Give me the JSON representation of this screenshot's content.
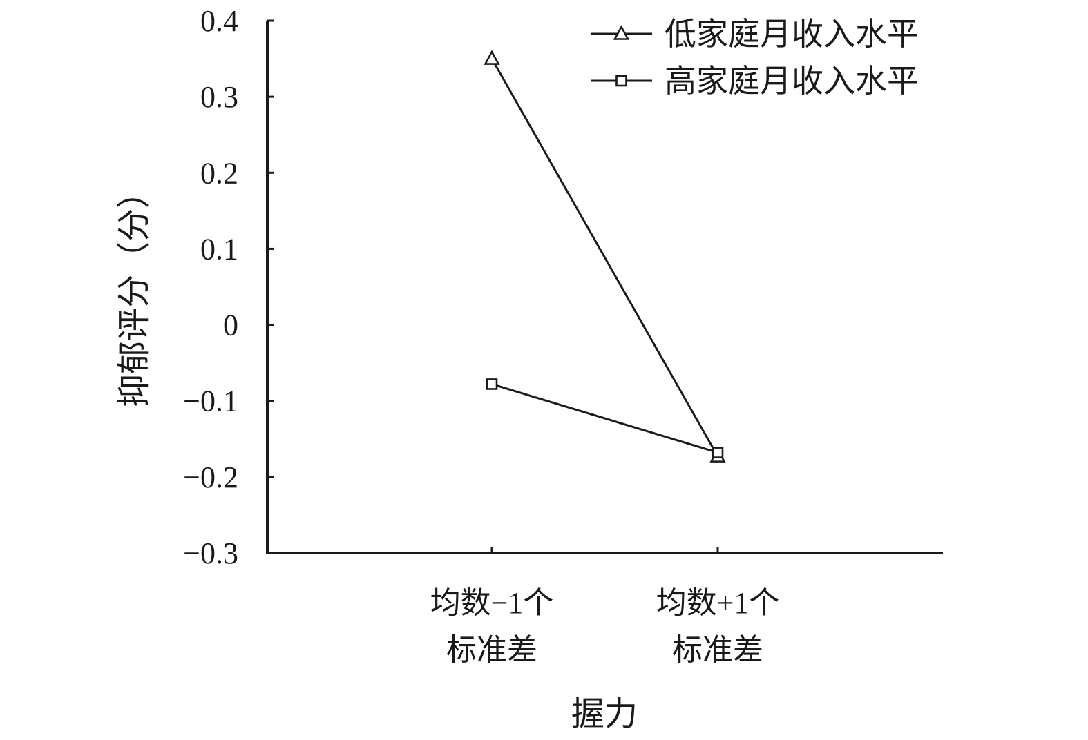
{
  "chart_data": {
    "type": "line",
    "title": "",
    "xlabel": "握力",
    "ylabel": "抑郁评分（分）",
    "categories": [
      [
        "均数−1个",
        "标准差"
      ],
      [
        "均数+1个",
        "标准差"
      ]
    ],
    "ylim": [
      -0.3,
      0.4
    ],
    "yticks": [
      0.4,
      0.3,
      0.2,
      0.1,
      0,
      -0.1,
      -0.2,
      -0.3
    ],
    "ytick_labels": [
      "0.4",
      "0.3",
      "0.2",
      "0.1",
      "0",
      "−0.1",
      "−0.2",
      "−0.3"
    ],
    "grid": false,
    "legend_position": "top-right",
    "series": [
      {
        "name": "低家庭月收入水平",
        "marker": "triangle",
        "values": [
          0.35,
          -0.173
        ]
      },
      {
        "name": "高家庭月收入水平",
        "marker": "square",
        "values": [
          -0.078,
          -0.168
        ]
      }
    ],
    "colors": {
      "line": "#1a1a1a",
      "axis": "#1a1a1a"
    }
  }
}
